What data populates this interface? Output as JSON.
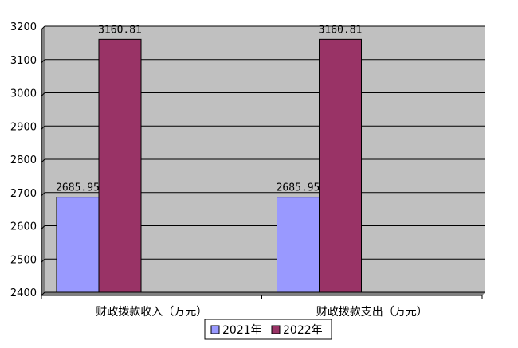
{
  "chart_data": {
    "type": "bar",
    "categories": [
      "财政拨款收入（万元）",
      "财政拨款支出（万元）"
    ],
    "series": [
      {
        "name": "2021年",
        "values": [
          2685.95,
          2685.95
        ],
        "labels": [
          "2685.95",
          "2685.95"
        ],
        "color": "#9999ff"
      },
      {
        "name": "2022年",
        "values": [
          3160.81,
          3160.81
        ],
        "labels": [
          "3160.81",
          "3160.81"
        ],
        "color": "#993366"
      }
    ],
    "ylim": [
      2400,
      3200
    ],
    "yticks": [
      2400,
      2500,
      2600,
      2700,
      2800,
      2900,
      3000,
      3100,
      3200
    ],
    "ytick_labels": [
      "2400",
      "2500",
      "2600",
      "2700",
      "2800",
      "2900",
      "3000",
      "3100",
      "3200"
    ],
    "grid": true,
    "legend_position": "bottom",
    "plot_background": "#c0c0c0",
    "gridline_color": "#000000"
  }
}
